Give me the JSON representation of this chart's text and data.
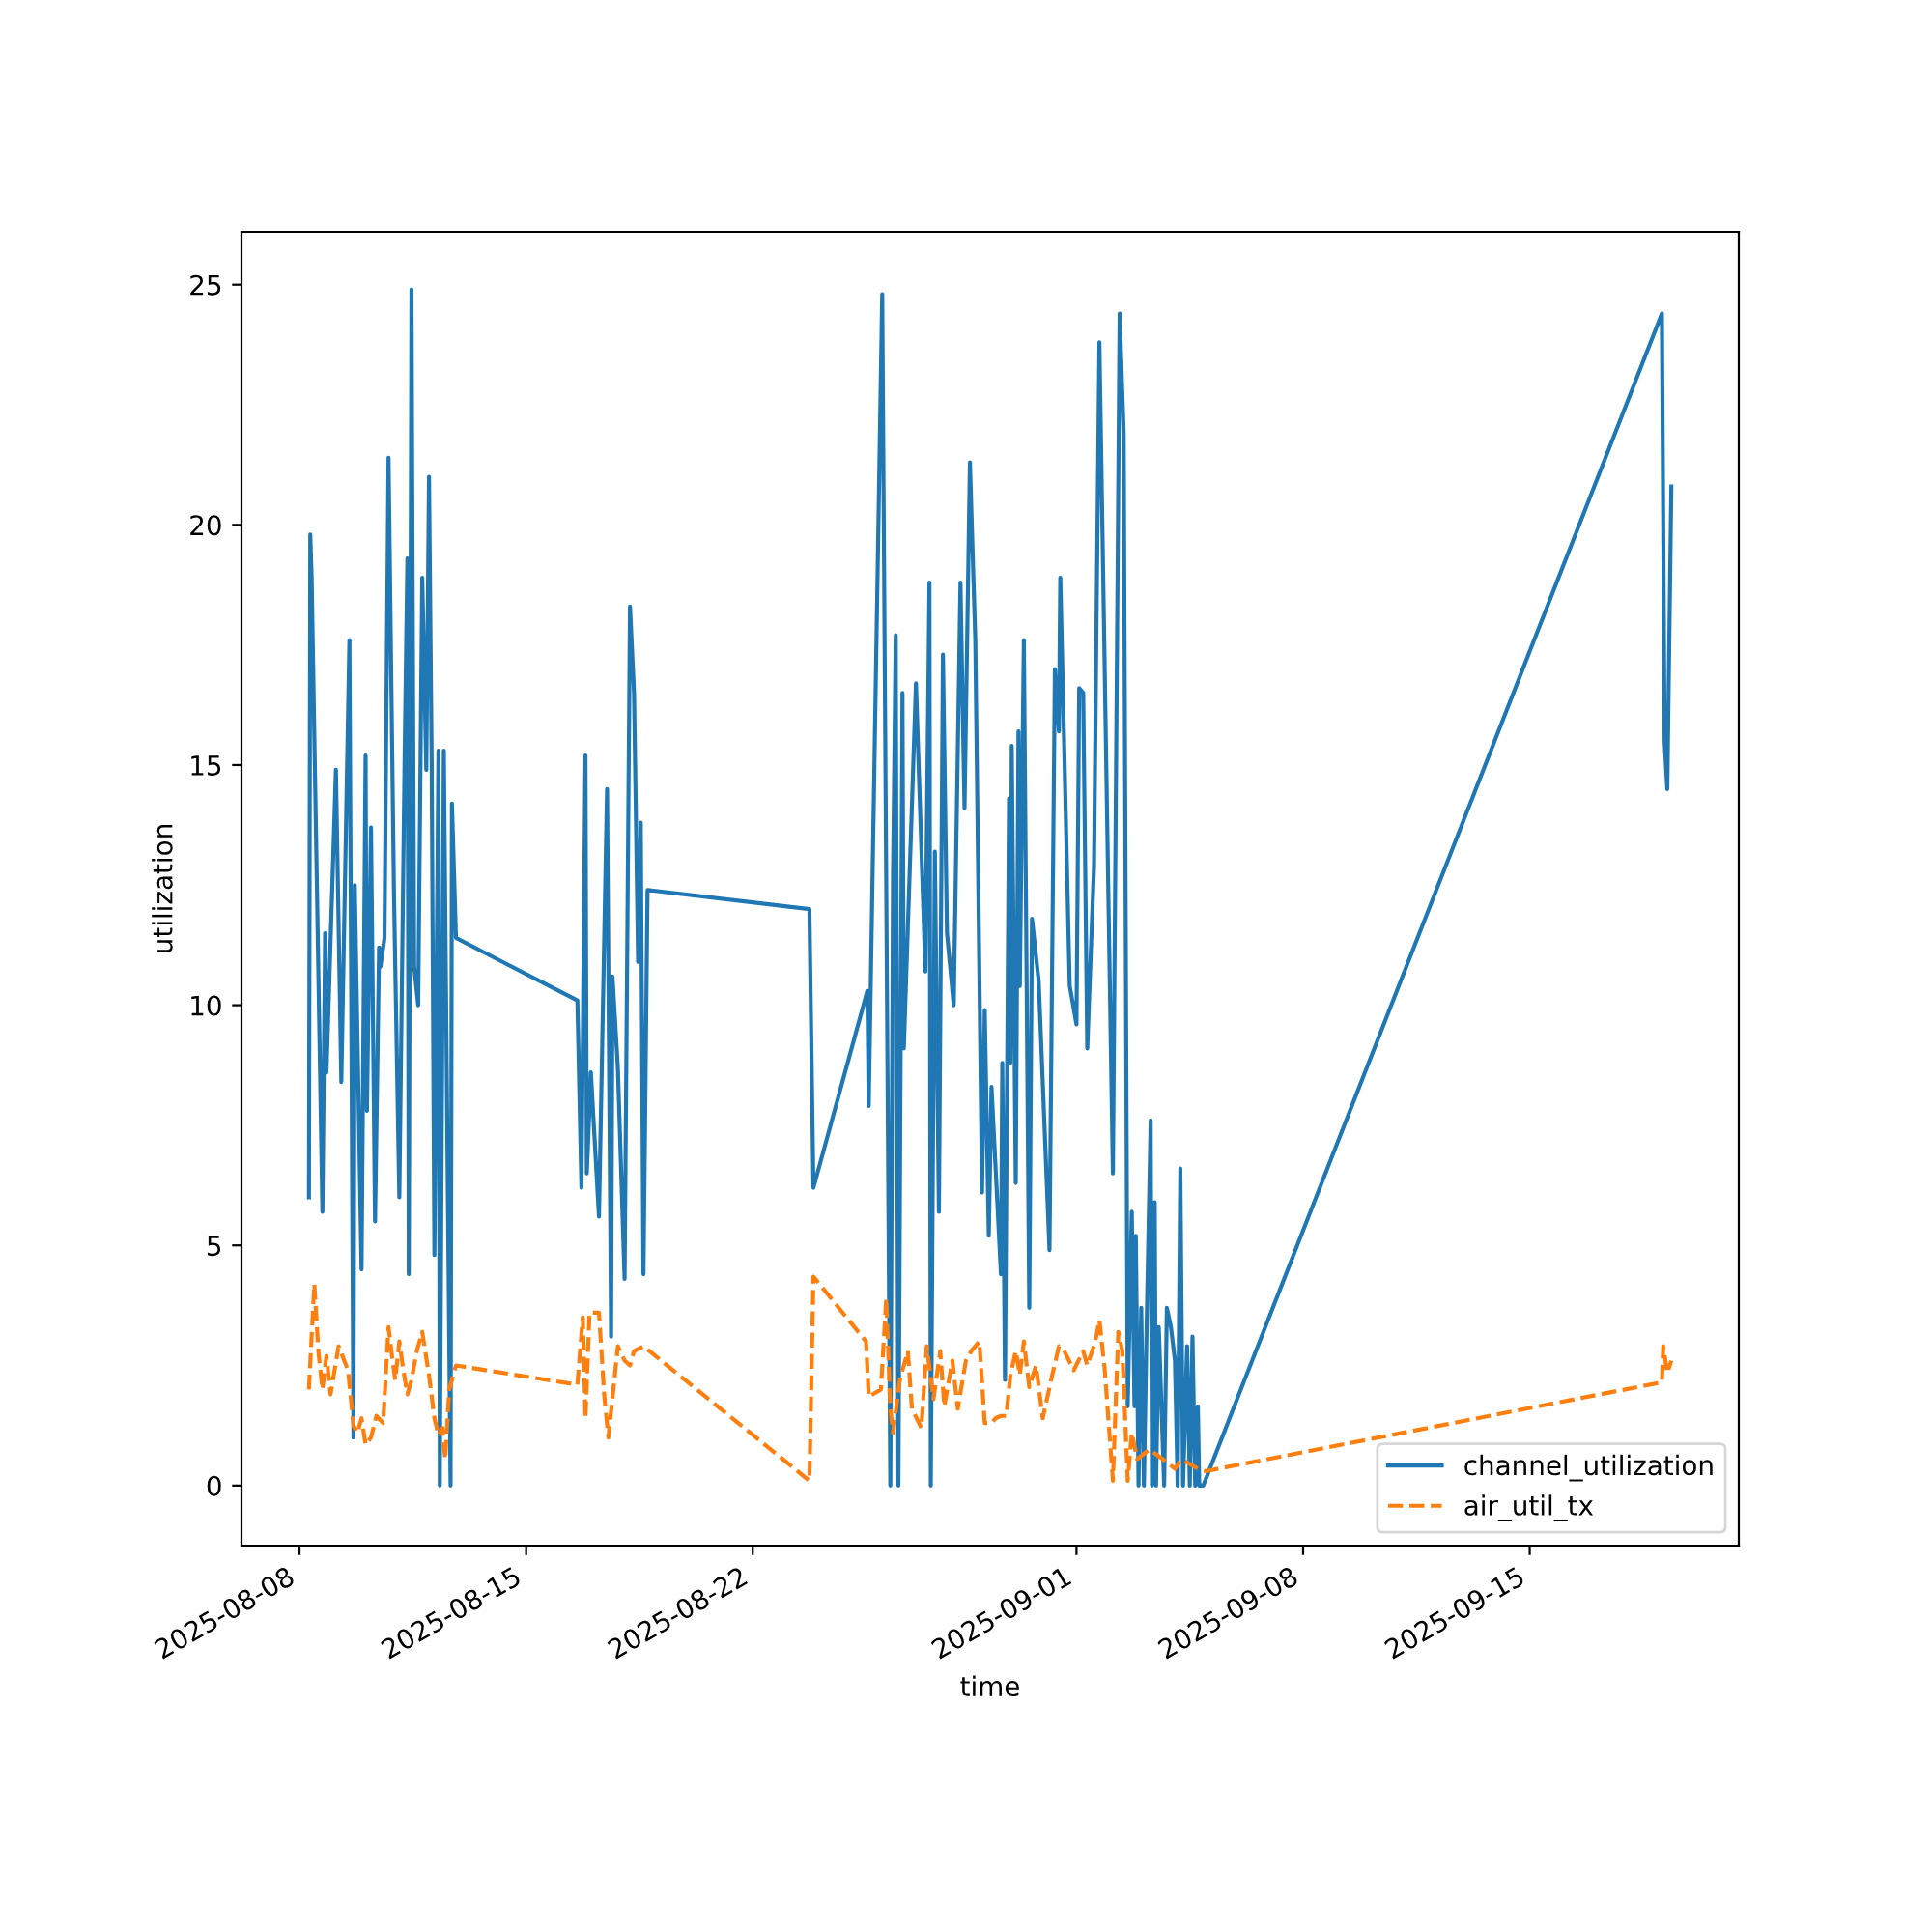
{
  "chart_data": {
    "type": "line",
    "xlabel": "time",
    "ylabel": "utilization",
    "xlim": [
      "2025-08-06T05:00",
      "2025-09-21T11:00"
    ],
    "ylim": [
      -1.25,
      26.1
    ],
    "xticks": [
      "2025-08-08",
      "2025-08-15",
      "2025-08-22",
      "2025-09-01",
      "2025-09-08",
      "2025-09-15"
    ],
    "yticks": [
      0,
      5,
      10,
      15,
      20,
      25
    ],
    "grid": false,
    "legend": "bottom right",
    "series": [
      {
        "name": "channel_utilization",
        "color": "#1f77b4",
        "line_style": "solid",
        "x": [
          "2025-08-08T07:00",
          "2025-08-08T08:00",
          "2025-08-08T09:00",
          "2025-08-08T17:00",
          "2025-08-08T19:00",
          "2025-08-08T20:00",
          "2025-08-09T03:00",
          "2025-08-09T07:00",
          "2025-08-09T13:00",
          "2025-08-09T16:00",
          "2025-08-09T17:00",
          "2025-08-09T22:00",
          "2025-08-10T01:00",
          "2025-08-10T02:00",
          "2025-08-10T05:00",
          "2025-08-10T08:00",
          "2025-08-10T11:00",
          "2025-08-10T12:00",
          "2025-08-10T15:00",
          "2025-08-10T18:00",
          "2025-08-10T22:00",
          "2025-08-11T02:00",
          "2025-08-11T06:00",
          "2025-08-11T08:00",
          "2025-08-11T09:00",
          "2025-08-11T11:00",
          "2025-08-11T13:00",
          "2025-08-11T16:00",
          "2025-08-11T19:00",
          "2025-08-11T22:00",
          "2025-08-12T00:00",
          "2025-08-12T02:00",
          "2025-08-12T04:00",
          "2025-08-12T07:00",
          "2025-08-12T08:00",
          "2025-08-12T11:00",
          "2025-08-12T14:00",
          "2025-08-12T16:00",
          "2025-08-12T17:00",
          "2025-08-12T20:00",
          "2025-08-16T14:00",
          "2025-08-16T17:00",
          "2025-08-16T20:00",
          "2025-08-16T21:00",
          "2025-08-17T00:00",
          "2025-08-17T06:00",
          "2025-08-17T12:00",
          "2025-08-17T15:00",
          "2025-08-17T16:00",
          "2025-08-17T20:00",
          "2025-08-18T01:00",
          "2025-08-18T05:00",
          "2025-08-18T08:00",
          "2025-08-18T11:00",
          "2025-08-18T13:00",
          "2025-08-18T15:00",
          "2025-08-18T18:00",
          "2025-08-23T18:00",
          "2025-08-23T21:00",
          "2025-08-25T13:00",
          "2025-08-25T14:00",
          "2025-08-26T00:00",
          "2025-08-26T06:00",
          "2025-08-26T08:00",
          "2025-08-26T10:00",
          "2025-08-26T12:00",
          "2025-08-26T15:00",
          "2025-08-26T16:00",
          "2025-08-27T01:00",
          "2025-08-27T08:00",
          "2025-08-27T11:00",
          "2025-08-27T12:00",
          "2025-08-27T15:00",
          "2025-08-27T18:00",
          "2025-08-27T21:00",
          "2025-08-28T00:00",
          "2025-08-28T05:00",
          "2025-08-28T10:00",
          "2025-08-28T13:00",
          "2025-08-28T17:00",
          "2025-08-28T21:00",
          "2025-08-29T02:00",
          "2025-08-29T04:00",
          "2025-08-29T07:00",
          "2025-08-29T09:00",
          "2025-08-29T16:00",
          "2025-08-29T17:00",
          "2025-08-29T19:00",
          "2025-08-29T22:00",
          "2025-08-29T23:00",
          "2025-08-30T00:00",
          "2025-08-30T03:00",
          "2025-08-30T05:00",
          "2025-08-30T06:00",
          "2025-08-30T09:00",
          "2025-08-30T13:00",
          "2025-08-30T15:00",
          "2025-08-30T20:00",
          "2025-08-31T04:00",
          "2025-08-31T08:00",
          "2025-08-31T11:00",
          "2025-08-31T12:00",
          "2025-08-31T19:00",
          "2025-09-01T00:00",
          "2025-09-01T02:00",
          "2025-09-01T05:00",
          "2025-09-01T08:00",
          "2025-09-01T13:00",
          "2025-09-01T17:00",
          "2025-09-02T03:00",
          "2025-09-02T08:00",
          "2025-09-02T11:00",
          "2025-09-02T14:00",
          "2025-09-02T17:00",
          "2025-09-02T19:00",
          "2025-09-02T20:00",
          "2025-09-02T22:00",
          "2025-09-03T00:00",
          "2025-09-03T02:00",
          "2025-09-03T04:00",
          "2025-09-03T07:00",
          "2025-09-03T08:00",
          "2025-09-03T10:00",
          "2025-09-03T11:00",
          "2025-09-03T13:00",
          "2025-09-03T17:00",
          "2025-09-03T19:00",
          "2025-09-03T22:00",
          "2025-09-04T01:00",
          "2025-09-04T03:00",
          "2025-09-04T05:00",
          "2025-09-04T07:00",
          "2025-09-04T10:00",
          "2025-09-04T12:00",
          "2025-09-04T14:00",
          "2025-09-04T16:00",
          "2025-09-04T18:00",
          "2025-09-04T19:00",
          "2025-09-04T22:00",
          "2025-09-19T02:00",
          "2025-09-19T04:00",
          "2025-09-19T06:00",
          "2025-09-19T09:00"
        ],
        "values": [
          6.0,
          19.8,
          18.9,
          5.7,
          11.5,
          8.6,
          14.9,
          8.4,
          17.6,
          1.0,
          12.5,
          4.5,
          15.2,
          7.8,
          13.7,
          5.5,
          11.2,
          10.8,
          11.4,
          21.4,
          12.4,
          6.0,
          15.3,
          19.3,
          4.4,
          24.9,
          10.8,
          10.0,
          18.9,
          14.9,
          21.0,
          15.0,
          4.8,
          15.3,
          0,
          15.3,
          6.0,
          0,
          14.2,
          11.4,
          10.1,
          6.2,
          15.2,
          6.5,
          8.6,
          5.6,
          14.5,
          3.1,
          10.6,
          8.7,
          4.3,
          18.3,
          16.5,
          10.9,
          13.8,
          4.4,
          12.4,
          12.0,
          6.2,
          10.3,
          7.9,
          24.8,
          0,
          12.7,
          17.7,
          0,
          16.5,
          9.1,
          16.7,
          10.7,
          18.8,
          0,
          13.2,
          5.7,
          17.3,
          11.5,
          10.0,
          18.8,
          14.1,
          21.3,
          17.6,
          6.1,
          9.9,
          5.2,
          8.3,
          4.4,
          8.8,
          2.2,
          14.3,
          8.8,
          15.4,
          6.3,
          15.7,
          10.4,
          17.6,
          3.7,
          11.8,
          10.5,
          4.9,
          17.0,
          15.7,
          18.9,
          10.4,
          9.6,
          16.6,
          16.5,
          9.1,
          12.9,
          23.8,
          6.5,
          24.4,
          21.9,
          1.65,
          5.7,
          1.65,
          5.2,
          0,
          3.7,
          0,
          3.3,
          7.6,
          0,
          5.9,
          0,
          3.3,
          0,
          3.7,
          3.3,
          2.6,
          0,
          6.6,
          0,
          2.9,
          0,
          3.1,
          0,
          1.65,
          0,
          0,
          24.4,
          15.5,
          14.5,
          20.8
        ]
      },
      {
        "name": "air_util_tx",
        "color": "#ff7f0e",
        "line_style": "dashed",
        "x": [
          "2025-08-08T07:00",
          "2025-08-08T11:00",
          "2025-08-08T14:00",
          "2025-08-08T17:00",
          "2025-08-08T20:00",
          "2025-08-08T23:00",
          "2025-08-09T05:00",
          "2025-08-09T12:00",
          "2025-08-09T16:00",
          "2025-08-09T19:00",
          "2025-08-09T22:00",
          "2025-08-10T01:00",
          "2025-08-10T05:00",
          "2025-08-10T09:00",
          "2025-08-10T14:00",
          "2025-08-10T18:00",
          "2025-08-10T21:00",
          "2025-08-10T23:00",
          "2025-08-11T02:00",
          "2025-08-11T05:00",
          "2025-08-11T08:00",
          "2025-08-11T11:00",
          "2025-08-11T15:00",
          "2025-08-11T19:00",
          "2025-08-12T00:00",
          "2025-08-12T04:00",
          "2025-08-12T07:00",
          "2025-08-12T10:00",
          "2025-08-12T12:00",
          "2025-08-12T15:00",
          "2025-08-12T20:00",
          "2025-08-16T14:00",
          "2025-08-16T18:00",
          "2025-08-16T20:00",
          "2025-08-16T23:00",
          "2025-08-17T06:00",
          "2025-08-17T10:00",
          "2025-08-17T13:00",
          "2025-08-17T20:00",
          "2025-08-18T01:00",
          "2025-08-18T05:00",
          "2025-08-18T08:00",
          "2025-08-18T15:00",
          "2025-08-23T18:00",
          "2025-08-23T21:00",
          "2025-08-25T12:00",
          "2025-08-25T14:00",
          "2025-08-25T23:00",
          "2025-08-26T03:00",
          "2025-08-26T06:00",
          "2025-08-26T08:00",
          "2025-08-26T13:00",
          "2025-08-26T19:00",
          "2025-08-26T22:00",
          "2025-08-27T05:00",
          "2025-08-27T09:00",
          "2025-08-27T14:00",
          "2025-08-27T19:00",
          "2025-08-27T22:00",
          "2025-08-28T04:00",
          "2025-08-28T08:00",
          "2025-08-28T14:00",
          "2025-08-28T18:00",
          "2025-08-29T00:00",
          "2025-08-29T04:00",
          "2025-08-29T09:00",
          "2025-08-29T12:00",
          "2025-08-29T16:00",
          "2025-08-29T20:00",
          "2025-08-29T23:00",
          "2025-08-30T03:00",
          "2025-08-30T06:00",
          "2025-08-30T09:00",
          "2025-08-30T13:00",
          "2025-08-30T18:00",
          "2025-08-30T23:00",
          "2025-08-31T06:00",
          "2025-08-31T11:00",
          "2025-08-31T15:00",
          "2025-08-31T22:00",
          "2025-09-01T05:00",
          "2025-09-01T08:00",
          "2025-09-01T14:00",
          "2025-09-01T17:00",
          "2025-09-01T21:00",
          "2025-09-02T03:00",
          "2025-09-02T07:00",
          "2025-09-02T10:00",
          "2025-09-02T14:00",
          "2025-09-02T17:00",
          "2025-09-02T21:00",
          "2025-09-03T06:00",
          "2025-09-03T16:00",
          "2025-09-04T01:00",
          "2025-09-04T06:00",
          "2025-09-04T12:00",
          "2025-09-04T18:00",
          "2025-09-05T00:00",
          "2025-09-19T02:00",
          "2025-09-19T03:00",
          "2025-09-19T06:00",
          "2025-09-19T09:00"
        ],
        "values": [
          2.0,
          4.2,
          2.8,
          2.0,
          2.7,
          1.9,
          2.9,
          2.4,
          1.25,
          1.1,
          1.4,
          0.85,
          1.0,
          1.45,
          1.3,
          3.3,
          2.6,
          2.2,
          3.0,
          2.4,
          1.9,
          2.2,
          2.8,
          3.2,
          2.3,
          1.4,
          1.05,
          1.2,
          0.55,
          2.0,
          2.5,
          2.1,
          3.5,
          1.4,
          3.6,
          3.6,
          1.85,
          1.0,
          2.9,
          2.6,
          2.5,
          2.8,
          2.9,
          0.1,
          4.35,
          3.0,
          1.85,
          2.0,
          3.9,
          1.6,
          1.1,
          2.2,
          2.8,
          1.6,
          1.2,
          2.9,
          1.8,
          2.8,
          1.65,
          2.6,
          1.6,
          2.6,
          2.8,
          3.0,
          1.3,
          1.3,
          1.4,
          1.45,
          1.45,
          2.3,
          2.8,
          2.3,
          3.0,
          2.05,
          2.5,
          1.4,
          2.3,
          2.9,
          2.8,
          2.4,
          2.8,
          2.5,
          3.0,
          3.45,
          2.4,
          0.1,
          3.2,
          2.8,
          0.1,
          1.1,
          0.55,
          0.75,
          0.55,
          0.35,
          0.55,
          0.45,
          0.35,
          0.3,
          2.15,
          2.9,
          2.35,
          2.6
        ]
      }
    ]
  }
}
